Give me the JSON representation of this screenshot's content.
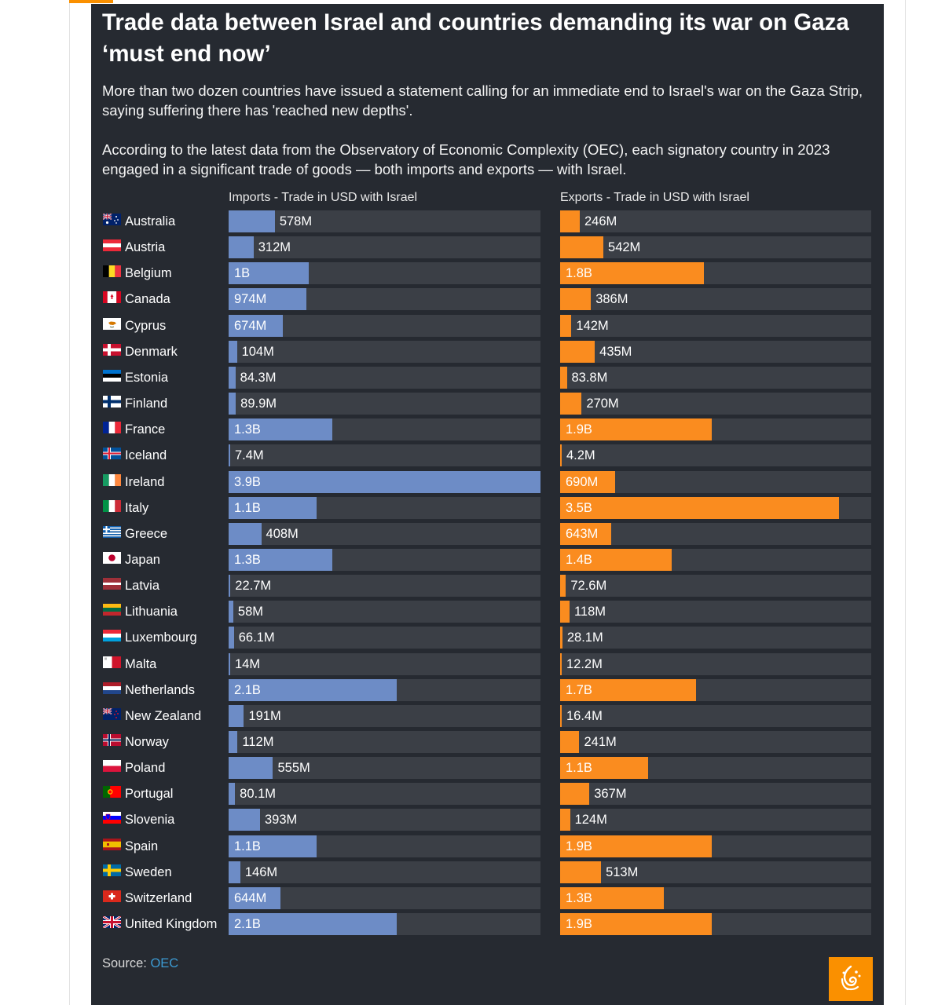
{
  "title": "Trade data between Israel and countries demanding its war on Gaza ‘must end now’",
  "intro1": "More than two dozen countries have issued a statement calling for an immediate end to Israel's war on the Gaza Strip, saying suffering there has 'reached new depths'.",
  "intro2": "According to the latest data from the Observatory of Economic Complexity (OEC), each signatory country in 2023 engaged in a significant trade of goods — both imports and exports — with Israel.",
  "source_label": "Source:",
  "source_link": "OEC",
  "colors": {
    "background": "#262a31",
    "track": "#3b3f46",
    "imports": "#6d8cc6",
    "exports": "#fa8c1f",
    "accent": "#fa9000",
    "link": "#3c9ad2"
  },
  "logo_icon": "al-jazeera-logo-icon",
  "chart_data": {
    "type": "bar",
    "orientation": "horizontal",
    "unit": "USD",
    "categories": [
      "Australia",
      "Austria",
      "Belgium",
      "Canada",
      "Cyprus",
      "Denmark",
      "Estonia",
      "Finland",
      "France",
      "Iceland",
      "Ireland",
      "Italy",
      "Greece",
      "Japan",
      "Latvia",
      "Lithuania",
      "Luxembourg",
      "Malta",
      "Netherlands",
      "New Zealand",
      "Norway",
      "Poland",
      "Portugal",
      "Slovenia",
      "Spain",
      "Sweden",
      "Switzerland",
      "United Kingdom"
    ],
    "flag_icons": [
      "australia-flag-icon",
      "austria-flag-icon",
      "belgium-flag-icon",
      "canada-flag-icon",
      "cyprus-flag-icon",
      "denmark-flag-icon",
      "estonia-flag-icon",
      "finland-flag-icon",
      "france-flag-icon",
      "iceland-flag-icon",
      "ireland-flag-icon",
      "italy-flag-icon",
      "greece-flag-icon",
      "japan-flag-icon",
      "latvia-flag-icon",
      "lithuania-flag-icon",
      "luxembourg-flag-icon",
      "malta-flag-icon",
      "netherlands-flag-icon",
      "new-zealand-flag-icon",
      "norway-flag-icon",
      "poland-flag-icon",
      "portugal-flag-icon",
      "slovenia-flag-icon",
      "spain-flag-icon",
      "sweden-flag-icon",
      "switzerland-flag-icon",
      "united-kingdom-flag-icon"
    ],
    "series": [
      {
        "name": "Imports - Trade in USD with Israel",
        "max": 3900000000,
        "values": [
          578000000,
          312000000,
          1000000000,
          974000000,
          674000000,
          104000000,
          84300000,
          89900000,
          1300000000,
          7400000,
          3900000000,
          1100000000,
          408000000,
          1300000000,
          22700000,
          58000000,
          66100000,
          14000000,
          2100000000,
          191000000,
          112000000,
          555000000,
          80100000,
          393000000,
          1100000000,
          146000000,
          644000000,
          2100000000
        ],
        "labels": [
          "578M",
          "312M",
          "1B",
          "974M",
          "674M",
          "104M",
          "84.3M",
          "89.9M",
          "1.3B",
          "7.4M",
          "3.9B",
          "1.1B",
          "408M",
          "1.3B",
          "22.7M",
          "58M",
          "66.1M",
          "14M",
          "2.1B",
          "191M",
          "112M",
          "555M",
          "80.1M",
          "393M",
          "1.1B",
          "146M",
          "644M",
          "2.1B"
        ]
      },
      {
        "name": "Exports - Trade in USD with Israel",
        "max": 3900000000,
        "values": [
          246000000,
          542000000,
          1800000000,
          386000000,
          142000000,
          435000000,
          83800000,
          270000000,
          1900000000,
          4200000,
          690000000,
          3500000000,
          643000000,
          1400000000,
          72600000,
          118000000,
          28100000,
          12200000,
          1700000000,
          16400000,
          241000000,
          1100000000,
          367000000,
          124000000,
          1900000000,
          513000000,
          1300000000,
          1900000000
        ],
        "labels": [
          "246M",
          "542M",
          "1.8B",
          "386M",
          "142M",
          "435M",
          "83.8M",
          "270M",
          "1.9B",
          "4.2M",
          "690M",
          "3.5B",
          "643M",
          "1.4B",
          "72.6M",
          "118M",
          "28.1M",
          "12.2M",
          "1.7B",
          "16.4M",
          "241M",
          "1.1B",
          "367M",
          "124M",
          "1.9B",
          "513M",
          "1.3B",
          "1.9B"
        ]
      }
    ]
  }
}
